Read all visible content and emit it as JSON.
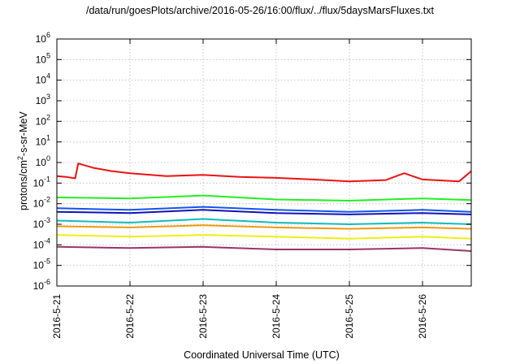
{
  "chart_data": {
    "type": "line",
    "title": "/data/run/goesPlots/archive/2016-05-26/16:00/flux/../flux/5daysMarsFluxes.txt",
    "xlabel": "Coordinated Universal Time (UTC)",
    "ylabel": {
      "prefix": "protons/cm",
      "sup": "2",
      "suffix": "-s-sr-MeV"
    },
    "yscale": "log",
    "ylim": [
      1e-06,
      1000000.0
    ],
    "xlim": [
      "2016-05-21",
      "2016-05-26 16:00"
    ],
    "y_ticks": [
      {
        "value": 1e-06,
        "exp": "-6"
      },
      {
        "value": 1e-05,
        "exp": "-5"
      },
      {
        "value": 0.0001,
        "exp": "-4"
      },
      {
        "value": 0.001,
        "exp": "-3"
      },
      {
        "value": 0.01,
        "exp": "-2"
      },
      {
        "value": 0.1,
        "exp": "-1"
      },
      {
        "value": 1,
        "exp": "0"
      },
      {
        "value": 10,
        "exp": "1"
      },
      {
        "value": 100,
        "exp": "2"
      },
      {
        "value": 1000,
        "exp": "3"
      },
      {
        "value": 10000,
        "exp": "4"
      },
      {
        "value": 100000,
        "exp": "5"
      },
      {
        "value": 1000000,
        "exp": "6"
      }
    ],
    "y_tick_base": "10",
    "x_ticks": [
      "2016-5-21",
      "2016-5-22",
      "2016-5-23",
      "2016-5-24",
      "2016-5-25",
      "2016-5-26"
    ],
    "grid": true,
    "series": [
      {
        "color": "#ee1111",
        "values": [
          [
            "2016-05-21 00:00",
            0.22
          ],
          [
            "2016-05-21 03:00",
            0.2
          ],
          [
            "2016-05-21 06:00",
            0.17
          ],
          [
            "2016-05-21 07:00",
            0.9
          ],
          [
            "2016-05-21 12:00",
            0.55
          ],
          [
            "2016-05-21 18:00",
            0.38
          ],
          [
            "2016-05-22 00:00",
            0.3
          ],
          [
            "2016-05-22 12:00",
            0.22
          ],
          [
            "2016-05-23 00:00",
            0.25
          ],
          [
            "2016-05-23 12:00",
            0.2
          ],
          [
            "2016-05-24 00:00",
            0.18
          ],
          [
            "2016-05-24 12:00",
            0.15
          ],
          [
            "2016-05-25 00:00",
            0.12
          ],
          [
            "2016-05-25 12:00",
            0.14
          ],
          [
            "2016-05-25 18:00",
            0.3
          ],
          [
            "2016-05-26 00:00",
            0.15
          ],
          [
            "2016-05-26 12:00",
            0.12
          ],
          [
            "2016-05-26 16:00",
            0.38
          ]
        ]
      },
      {
        "color": "#22ee22",
        "values": [
          [
            "2016-05-21 00:00",
            0.02
          ],
          [
            "2016-05-22 00:00",
            0.018
          ],
          [
            "2016-05-23 00:00",
            0.025
          ],
          [
            "2016-05-24 00:00",
            0.016
          ],
          [
            "2016-05-25 00:00",
            0.014
          ],
          [
            "2016-05-26 00:00",
            0.018
          ],
          [
            "2016-05-26 16:00",
            0.015
          ]
        ]
      },
      {
        "color": "#1155ee",
        "values": [
          [
            "2016-05-21 00:00",
            0.006
          ],
          [
            "2016-05-22 00:00",
            0.005
          ],
          [
            "2016-05-23 00:00",
            0.007
          ],
          [
            "2016-05-24 00:00",
            0.005
          ],
          [
            "2016-05-25 00:00",
            0.004
          ],
          [
            "2016-05-26 00:00",
            0.005
          ],
          [
            "2016-05-26 16:00",
            0.004
          ]
        ]
      },
      {
        "color": "#1111bb",
        "values": [
          [
            "2016-05-21 00:00",
            0.004
          ],
          [
            "2016-05-22 00:00",
            0.0035
          ],
          [
            "2016-05-23 00:00",
            0.005
          ],
          [
            "2016-05-24 00:00",
            0.0035
          ],
          [
            "2016-05-25 00:00",
            0.003
          ],
          [
            "2016-05-26 00:00",
            0.0035
          ],
          [
            "2016-05-26 16:00",
            0.003
          ]
        ]
      },
      {
        "color": "#11bbbb",
        "values": [
          [
            "2016-05-21 00:00",
            0.0015
          ],
          [
            "2016-05-22 00:00",
            0.0012
          ],
          [
            "2016-05-23 00:00",
            0.0018
          ],
          [
            "2016-05-24 00:00",
            0.0012
          ],
          [
            "2016-05-25 00:00",
            0.001
          ],
          [
            "2016-05-26 00:00",
            0.0012
          ],
          [
            "2016-05-26 16:00",
            0.001
          ]
        ]
      },
      {
        "color": "#ee9911",
        "values": [
          [
            "2016-05-21 00:00",
            0.0008
          ],
          [
            "2016-05-22 00:00",
            0.0007
          ],
          [
            "2016-05-23 00:00",
            0.0009
          ],
          [
            "2016-05-24 00:00",
            0.0007
          ],
          [
            "2016-05-25 00:00",
            0.0006
          ],
          [
            "2016-05-26 00:00",
            0.0007
          ],
          [
            "2016-05-26 16:00",
            0.0006
          ]
        ]
      },
      {
        "color": "#eeee11",
        "values": [
          [
            "2016-05-21 00:00",
            0.0003
          ],
          [
            "2016-05-22 00:00",
            0.00025
          ],
          [
            "2016-05-23 00:00",
            0.0003
          ],
          [
            "2016-05-24 00:00",
            0.00025
          ],
          [
            "2016-05-25 00:00",
            0.0002
          ],
          [
            "2016-05-26 00:00",
            0.00025
          ],
          [
            "2016-05-26 16:00",
            0.0002
          ]
        ]
      },
      {
        "color": "#993366",
        "values": [
          [
            "2016-05-21 00:00",
            8e-05
          ],
          [
            "2016-05-22 00:00",
            7e-05
          ],
          [
            "2016-05-23 00:00",
            8e-05
          ],
          [
            "2016-05-24 00:00",
            6e-05
          ],
          [
            "2016-05-25 00:00",
            6e-05
          ],
          [
            "2016-05-26 00:00",
            7e-05
          ],
          [
            "2016-05-26 16:00",
            5e-05
          ]
        ]
      }
    ]
  }
}
